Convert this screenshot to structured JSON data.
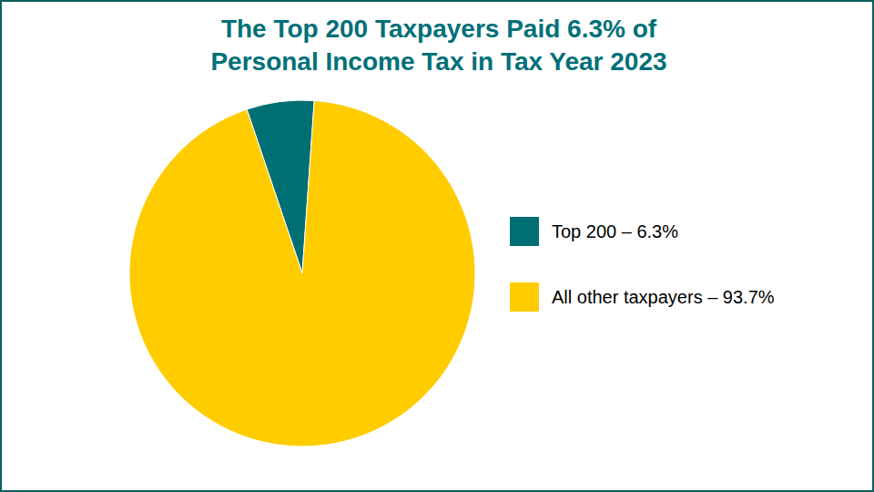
{
  "chart_data": {
    "type": "pie",
    "title": "The Top 200 Taxpayers Paid 6.3% of Personal Income Tax in Tax Year 2023",
    "categories": [
      "Top 200 – 6.3%",
      "All other taxpayers – 93.7%"
    ],
    "values": [
      6.3,
      93.7
    ],
    "colors": [
      "#006f73",
      "#ffcc00"
    ],
    "legend": "right"
  }
}
